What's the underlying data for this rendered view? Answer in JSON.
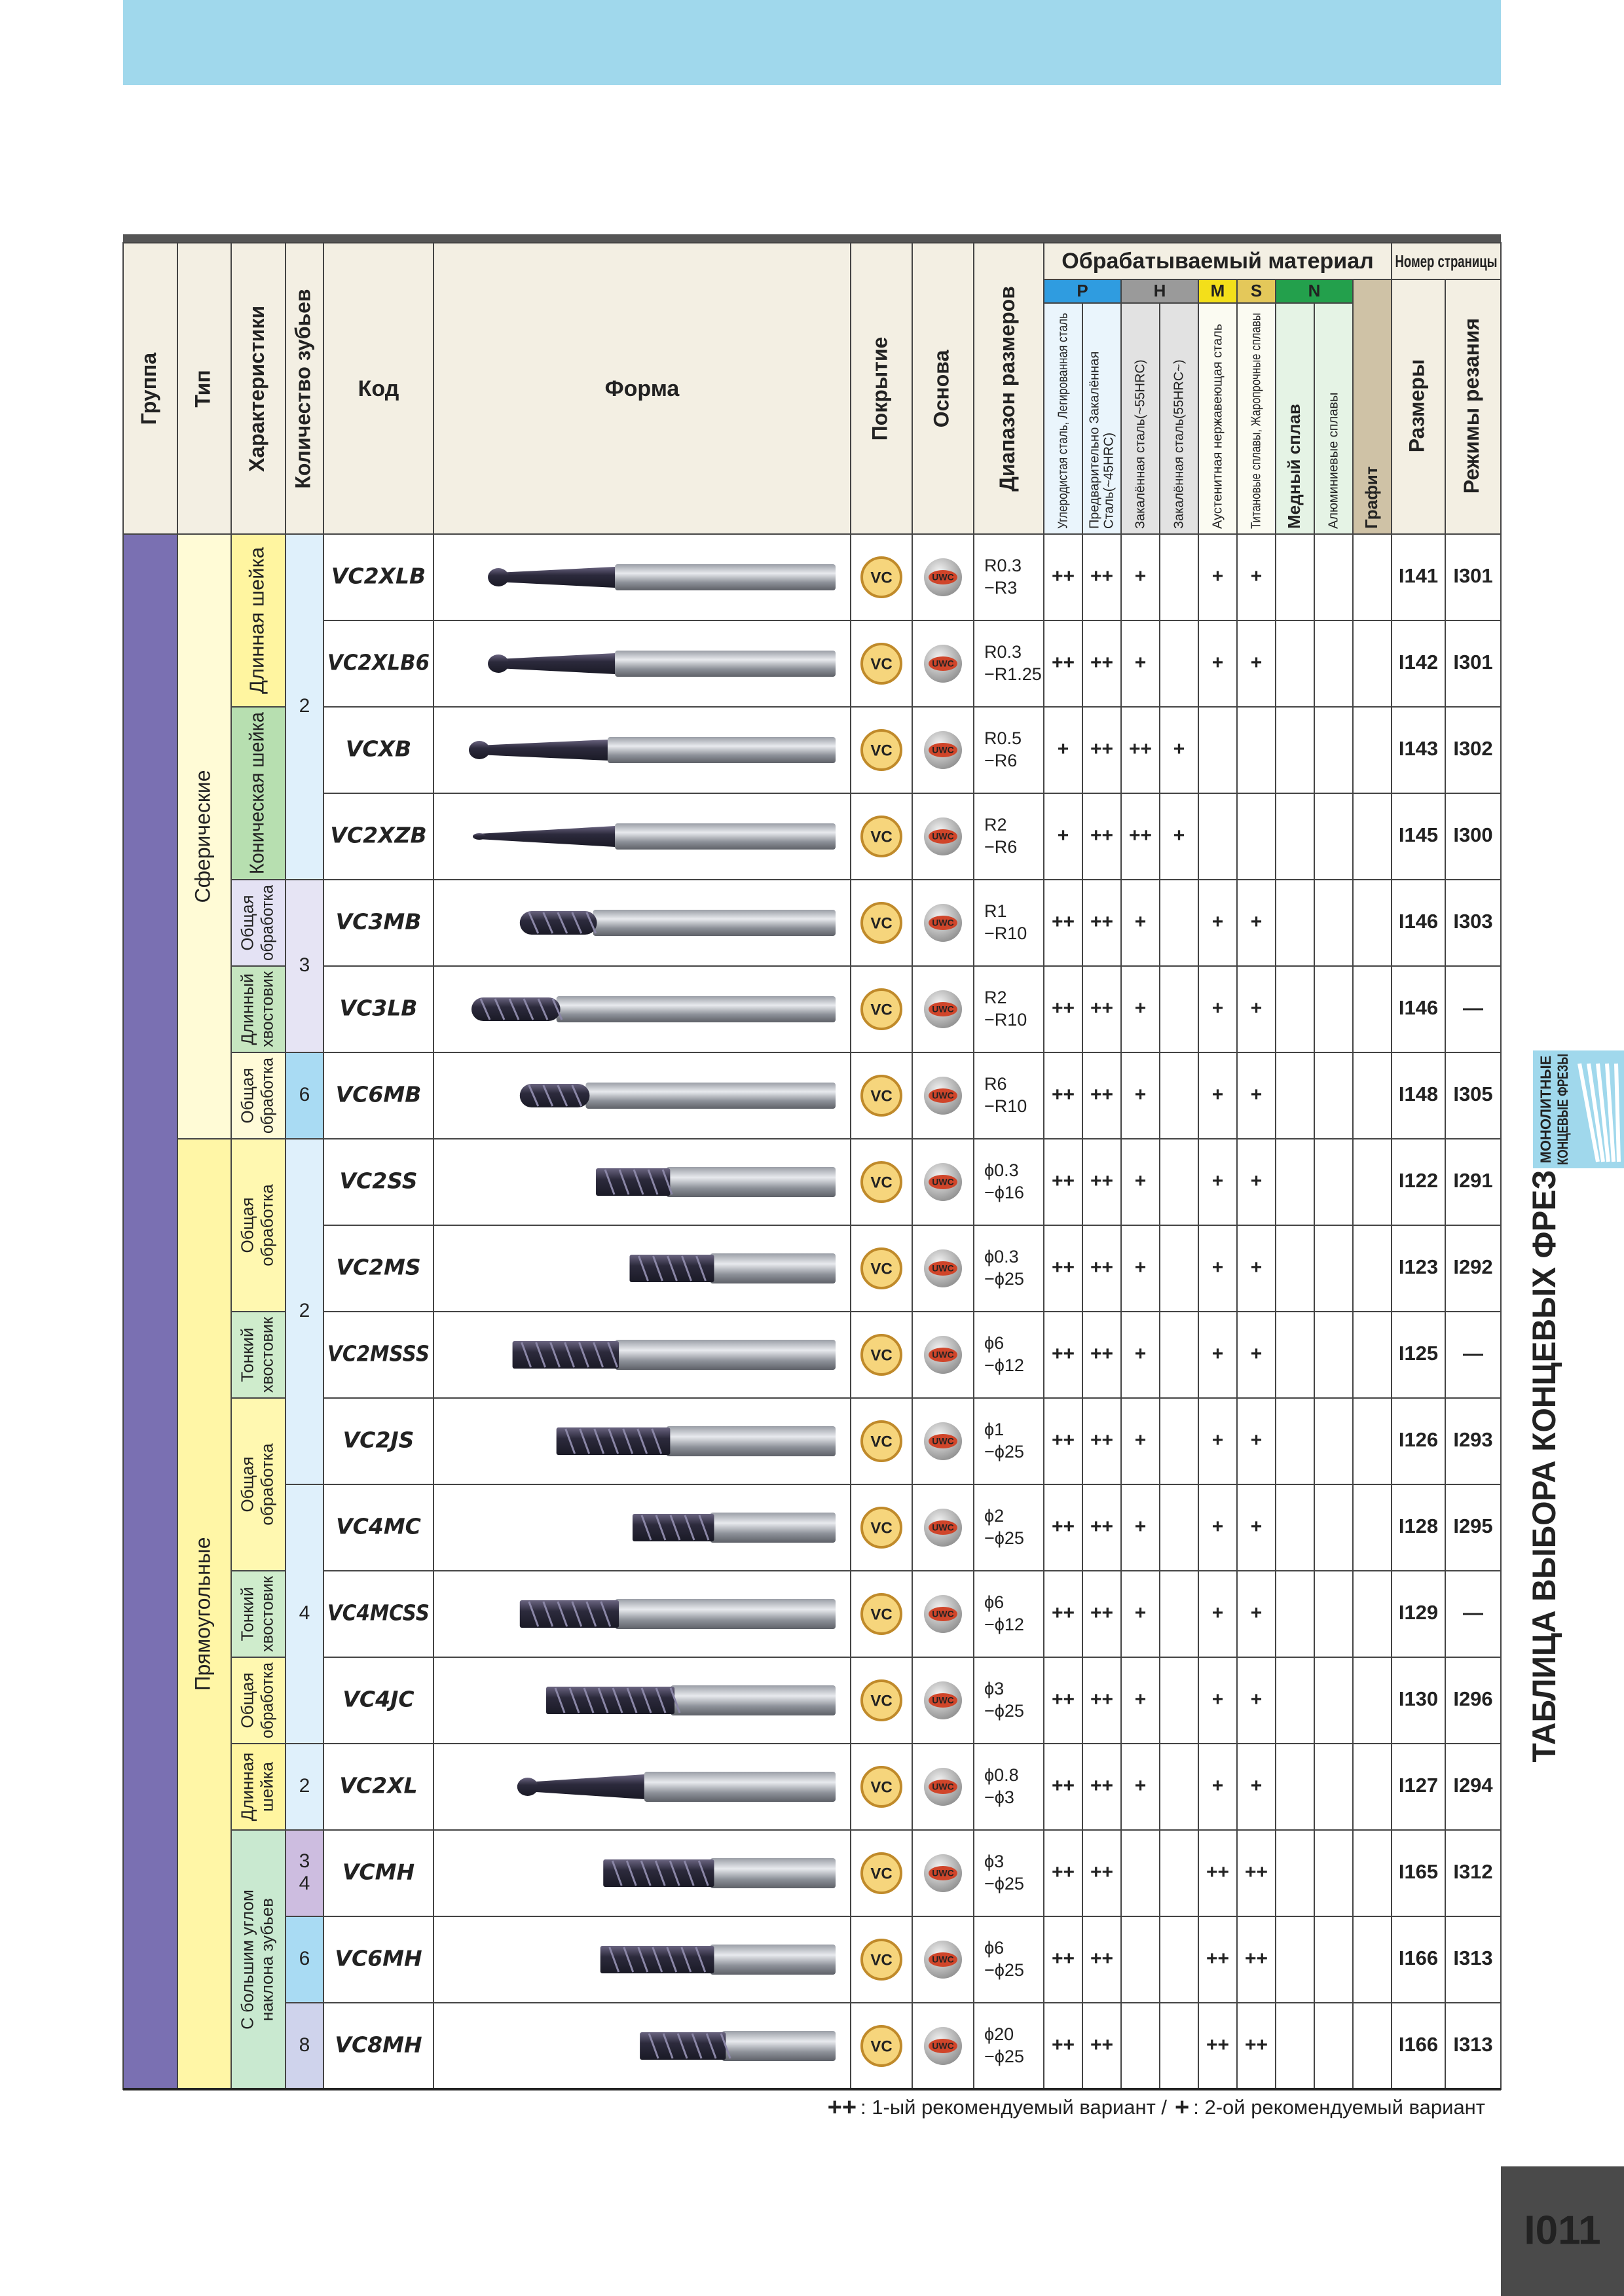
{
  "header": {
    "group": "Группа",
    "type": "Тип",
    "features": "Характеристики",
    "teeth": "Количество зубьев",
    "code": "Код",
    "shape": "Форма",
    "coating": "Покрытие",
    "base": "Основа",
    "range": "Диапазон размеров",
    "material": "Обрабатываемый материал",
    "page": "Номер страницы",
    "sizes": "Размеры",
    "cutting": "Режимы резания",
    "material_groups": [
      {
        "label": "P",
        "color": "#2f9ce0",
        "columns": 2
      },
      {
        "label": "H",
        "color": "#9a9a9a",
        "columns": 2
      },
      {
        "label": "M",
        "color": "#f3df1a",
        "columns": 1
      },
      {
        "label": "S",
        "color": "#e4c85a",
        "columns": 1
      },
      {
        "label": "N",
        "color": "#23a04c",
        "columns": 2
      }
    ],
    "material_columns": [
      {
        "lines": [
          "Углеродистая сталь, Легированная сталь"
        ],
        "color": "#eaf5fc"
      },
      {
        "lines": [
          "Предварительно Закалённая",
          "Сталь(~45HRC)"
        ],
        "color": "#eaf5fc"
      },
      {
        "lines": [
          "Закалённая сталь(~55HRC)"
        ],
        "color": "#e2e2e2"
      },
      {
        "lines": [
          "Закалённая сталь(55HRC~)"
        ],
        "color": "#e2e2e2"
      },
      {
        "lines": [
          "Аустенитная нержавеющая сталь"
        ],
        "color": "#fbfbf2"
      },
      {
        "lines": [
          "Титановые сплавы, Жаропрочные сплавы"
        ],
        "color": "#fbfbf2"
      },
      {
        "lines": [
          "Медный сплав"
        ],
        "color": "#e5f3e5"
      },
      {
        "lines": [
          "Алюминиевые сплавы"
        ],
        "color": "#e5f3e5"
      },
      {
        "lines": [
          "Графит"
        ],
        "color": "#cfc2a6"
      }
    ]
  },
  "type_cells": [
    {
      "label": "Сферические",
      "span": 7,
      "color": "#fffbd6"
    },
    {
      "label": "Прямоугольные",
      "span": 11,
      "color": "#fff6a6"
    }
  ],
  "feature_cells": [
    {
      "lines": [
        "Длинная шейка"
      ],
      "span": 2,
      "color": "#fff5a0"
    },
    {
      "lines": [
        "Коническая шейка"
      ],
      "span": 2,
      "color": "#b7dfb0"
    },
    {
      "lines": [
        "Общая",
        "обработка"
      ],
      "span": 1,
      "color": "#e4e2f4"
    },
    {
      "lines": [
        "Длинный",
        "хвостовик"
      ],
      "span": 1,
      "color": "#c6e6c0"
    },
    {
      "lines": [
        "Общая",
        "обработка"
      ],
      "span": 1,
      "color": "#fffbd8"
    },
    {
      "lines": [
        "Общая",
        "обработка"
      ],
      "span": 2,
      "color": "#fff8b0"
    },
    {
      "lines": [
        "Тонкий",
        "хвостовик"
      ],
      "span": 1,
      "color": "#cfeccc"
    },
    {
      "lines": [
        "Общая",
        "обработка"
      ],
      "span": 2,
      "color": "#fff8b0"
    },
    {
      "lines": [
        "Тонкий",
        "хвостовик"
      ],
      "span": 1,
      "color": "#cfeccc"
    },
    {
      "lines": [
        "Общая",
        "обработка"
      ],
      "span": 1,
      "color": "#fff8b0"
    },
    {
      "lines": [
        "Длинная",
        "шейка"
      ],
      "span": 1,
      "color": "#fff5a0"
    },
    {
      "lines": [
        "С большим углом",
        "наклона зубьев"
      ],
      "span": 3,
      "color": "#c9e9d0"
    }
  ],
  "teeth_cells": [
    {
      "lines": [
        "2"
      ],
      "span": 4,
      "color": "#dff0fb"
    },
    {
      "lines": [
        "3"
      ],
      "span": 2,
      "color": "#e6e4f4"
    },
    {
      "lines": [
        "6"
      ],
      "span": 1,
      "color": "#a9dbf3"
    },
    {
      "lines": [
        "2"
      ],
      "span": 4,
      "color": "#dff0fb"
    },
    {
      "lines": [
        "4"
      ],
      "span": 3,
      "color": "#dff0fb"
    },
    {
      "lines": [
        "2"
      ],
      "span": 1,
      "color": "#dff0fb"
    },
    {
      "lines": [
        "3",
        "4"
      ],
      "span": 1,
      "color": "#cdbde0"
    },
    {
      "lines": [
        "6"
      ],
      "span": 1,
      "color": "#a9dbf3"
    },
    {
      "lines": [
        "8"
      ],
      "span": 1,
      "color": "#cfd3ec"
    }
  ],
  "coating_label": "VC",
  "base_label": "UWC",
  "rows": [
    {
      "code": "VC2XLB",
      "range": [
        "R0.3",
        "−R3"
      ],
      "marks": [
        "++",
        "++",
        "+",
        null,
        "+",
        "+",
        null,
        null,
        null
      ],
      "sizes": "I141",
      "cutting": "I301"
    },
    {
      "code": "VC2XLB6",
      "range": [
        "R0.3",
        "−R1.25"
      ],
      "marks": [
        "++",
        "++",
        "+",
        null,
        "+",
        "+",
        null,
        null,
        null
      ],
      "sizes": "I142",
      "cutting": "I301"
    },
    {
      "code": "VCXB",
      "range": [
        "R0.5",
        "−R6"
      ],
      "marks": [
        "+",
        "++",
        "++",
        "+",
        null,
        null,
        null,
        null,
        null
      ],
      "sizes": "I143",
      "cutting": "I302"
    },
    {
      "code": "VC2XZB",
      "range": [
        "R2",
        "−R6"
      ],
      "marks": [
        "+",
        "++",
        "++",
        "+",
        null,
        null,
        null,
        null,
        null
      ],
      "sizes": "I145",
      "cutting": "I300"
    },
    {
      "code": "VC3MB",
      "range": [
        "R1",
        "−R10"
      ],
      "marks": [
        "++",
        "++",
        "+",
        null,
        "+",
        "+",
        null,
        null,
        null
      ],
      "sizes": "I146",
      "cutting": "I303"
    },
    {
      "code": "VC3LB",
      "range": [
        "R2",
        "−R10"
      ],
      "marks": [
        "++",
        "++",
        "+",
        null,
        "+",
        "+",
        null,
        null,
        null
      ],
      "sizes": "I146",
      "cutting": "—"
    },
    {
      "code": "VC6MB",
      "range": [
        "R6",
        "−R10"
      ],
      "marks": [
        "++",
        "++",
        "+",
        null,
        "+",
        "+",
        null,
        null,
        null
      ],
      "sizes": "I148",
      "cutting": "I305"
    },
    {
      "code": "VC2SS",
      "range": [
        "ϕ0.3",
        "−ϕ16"
      ],
      "marks": [
        "++",
        "++",
        "+",
        null,
        "+",
        "+",
        null,
        null,
        null
      ],
      "sizes": "I122",
      "cutting": "I291"
    },
    {
      "code": "VC2MS",
      "range": [
        "ϕ0.3",
        "−ϕ25"
      ],
      "marks": [
        "++",
        "++",
        "+",
        null,
        "+",
        "+",
        null,
        null,
        null
      ],
      "sizes": "I123",
      "cutting": "I292"
    },
    {
      "code": "VC2MSSS",
      "range": [
        "ϕ6",
        "−ϕ12"
      ],
      "marks": [
        "++",
        "++",
        "+",
        null,
        "+",
        "+",
        null,
        null,
        null
      ],
      "sizes": "I125",
      "cutting": "—"
    },
    {
      "code": "VC2JS",
      "range": [
        "ϕ1",
        "−ϕ25"
      ],
      "marks": [
        "++",
        "++",
        "+",
        null,
        "+",
        "+",
        null,
        null,
        null
      ],
      "sizes": "I126",
      "cutting": "I293"
    },
    {
      "code": "VC4MC",
      "range": [
        "ϕ2",
        "−ϕ25"
      ],
      "marks": [
        "++",
        "++",
        "+",
        null,
        "+",
        "+",
        null,
        null,
        null
      ],
      "sizes": "I128",
      "cutting": "I295"
    },
    {
      "code": "VC4MCSS",
      "range": [
        "ϕ6",
        "−ϕ12"
      ],
      "marks": [
        "++",
        "++",
        "+",
        null,
        "+",
        "+",
        null,
        null,
        null
      ],
      "sizes": "I129",
      "cutting": "—"
    },
    {
      "code": "VC4JC",
      "range": [
        "ϕ3",
        "−ϕ25"
      ],
      "marks": [
        "++",
        "++",
        "+",
        null,
        "+",
        "+",
        null,
        null,
        null
      ],
      "sizes": "I130",
      "cutting": "I296"
    },
    {
      "code": "VC2XL",
      "range": [
        "ϕ0.8",
        "−ϕ3"
      ],
      "marks": [
        "++",
        "++",
        "+",
        null,
        "+",
        "+",
        null,
        null,
        null
      ],
      "sizes": "I127",
      "cutting": "I294"
    },
    {
      "code": "VCMH",
      "range": [
        "ϕ3",
        "−ϕ25"
      ],
      "marks": [
        "++",
        "++",
        null,
        null,
        "++",
        "++",
        null,
        null,
        null
      ],
      "sizes": "I165",
      "cutting": "I312"
    },
    {
      "code": "VC6MH",
      "range": [
        "ϕ6",
        "−ϕ25"
      ],
      "marks": [
        "++",
        "++",
        null,
        null,
        "++",
        "++",
        null,
        null,
        null
      ],
      "sizes": "I166",
      "cutting": "I313"
    },
    {
      "code": "VC8MH",
      "range": [
        "ϕ20",
        "−ϕ25"
      ],
      "marks": [
        "++",
        "++",
        null,
        null,
        "++",
        "++",
        null,
        null,
        null
      ],
      "sizes": "I166",
      "cutting": "I313"
    }
  ],
  "legend": [
    "++",
    ": 1-ый рекомендуемый вариант /",
    "+",
    ": 2-ой рекомендуемый вариант"
  ],
  "side": {
    "title": "ТАБЛИЦА ВЫБОРА КОНЦЕВЫХ ФРЕЗ",
    "tab": [
      "МОНОЛИТНЫЕ",
      "КОНЦЕВЫЕ ФРЕЗЫ"
    ],
    "page_number": "I011"
  }
}
